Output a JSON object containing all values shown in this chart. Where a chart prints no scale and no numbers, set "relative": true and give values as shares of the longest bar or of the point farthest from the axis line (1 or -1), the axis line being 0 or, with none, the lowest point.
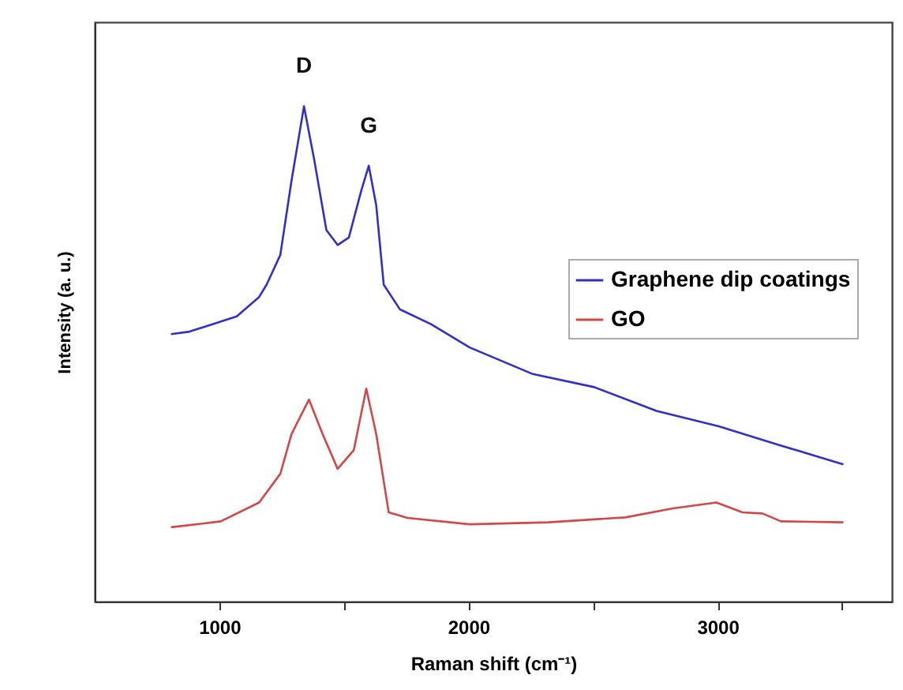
{
  "chart_data": {
    "type": "line",
    "relative": true,
    "xlabel": "Raman shift (cm⁻¹)",
    "ylabel": "Intensity (a. u.)",
    "xlim": [
      500,
      3700
    ],
    "xticks": [
      1000,
      {
        "value": 1500,
        "label": null
      },
      2000,
      {
        "value": 2500,
        "label": null
      },
      3000,
      {
        "value": 3500,
        "label": null
      }
    ],
    "x": [
      806,
      880,
      1070,
      1160,
      1190,
      1245,
      1290,
      1340,
      1380,
      1430,
      1475,
      1520,
      1570,
      1600,
      1630,
      1660,
      1725,
      1850,
      2005,
      2255,
      2505,
      2755,
      3005,
      3255,
      3505
    ],
    "series": [
      {
        "name": "Graphene dip coatings",
        "color": "#3030c8",
        "values": [
          0.54,
          0.545,
          0.576,
          0.615,
          0.64,
          0.7,
          0.85,
          1.0,
          0.895,
          0.75,
          0.72,
          0.735,
          0.83,
          0.88,
          0.8,
          0.64,
          0.59,
          0.56,
          0.513,
          0.46,
          0.433,
          0.385,
          0.354,
          0.315,
          0.277
        ]
      },
      {
        "name": "GO",
        "color": "#d04848",
        "x": [
          806,
          1006,
          1160,
          1245,
          1290,
          1360,
          1415,
          1475,
          1540,
          1590,
          1630,
          1680,
          1755,
          2005,
          2320,
          2630,
          2820,
          2995,
          3100,
          3180,
          3255,
          3505
        ],
        "values": [
          0.15,
          0.162,
          0.2,
          0.258,
          0.338,
          0.408,
          0.338,
          0.268,
          0.306,
          0.43,
          0.338,
          0.18,
          0.169,
          0.156,
          0.16,
          0.17,
          0.188,
          0.2,
          0.18,
          0.178,
          0.162,
          0.16
        ]
      }
    ],
    "legend": "right",
    "marker": "none",
    "annotations": [
      "D",
      "G"
    ]
  }
}
